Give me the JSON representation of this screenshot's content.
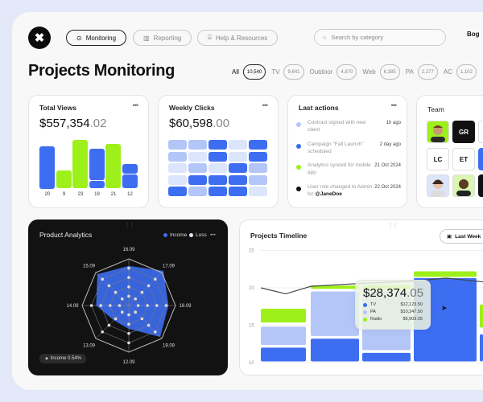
{
  "nav": {
    "monitoring": "Monitoring",
    "reporting": "Reporting",
    "help": "Help & Resources",
    "search_placeholder": "Search by category",
    "user": "Bog"
  },
  "page_title": "Projects Monitoring",
  "filters": [
    {
      "label": "All",
      "count": "10,540"
    },
    {
      "label": "TV",
      "count": "9,641"
    },
    {
      "label": "Outdoor",
      "count": "4,870"
    },
    {
      "label": "Web",
      "count": "6,385"
    },
    {
      "label": "PA",
      "count": "2,277"
    },
    {
      "label": "AC",
      "count": "1,102"
    }
  ],
  "total_views": {
    "title": "Total Views",
    "amount": "$557,354",
    "cents": ".02",
    "more": "•••",
    "bars": [
      {
        "label": "20",
        "segments": [
          {
            "v": 20,
            "c": "blue"
          }
        ]
      },
      {
        "label": "9",
        "segments": [
          {
            "v": 9,
            "c": "green"
          }
        ]
      },
      {
        "label": "23",
        "segments": [
          {
            "v": 23,
            "c": "green"
          }
        ]
      },
      {
        "label": "19",
        "segments": [
          {
            "v": 4,
            "c": "blue"
          },
          {
            "v": 15,
            "c": "blue"
          }
        ]
      },
      {
        "label": "21",
        "segments": [
          {
            "v": 21,
            "c": "green"
          }
        ]
      },
      {
        "label": "12",
        "segments": [
          {
            "v": 7,
            "c": "blue"
          },
          {
            "v": 5,
            "c": "blue"
          }
        ]
      }
    ]
  },
  "weekly_clicks": {
    "title": "Weekly Clicks",
    "amount": "$60,598",
    "cents": ".00",
    "more": "•••",
    "grid": [
      [
        2,
        2,
        3,
        1,
        3
      ],
      [
        2,
        1,
        3,
        1,
        3
      ],
      [
        1,
        2,
        1,
        3,
        2
      ],
      [
        1,
        3,
        3,
        3,
        2
      ],
      [
        3,
        2,
        3,
        3,
        1
      ]
    ]
  },
  "last_actions": {
    "title": "Last actions",
    "more": "•••",
    "items": [
      {
        "text": "Contract signed with new client",
        "mention": "",
        "date": "1h ago",
        "color": "#b3c6f7"
      },
      {
        "text": "Campaign \"Fall Launch\" scheduled",
        "mention": "",
        "date": "2 day ago",
        "color": "#3a6cf0"
      },
      {
        "text": "Analytics synced for mobile app",
        "mention": "",
        "date": "21 Oct 2024",
        "color": "#9ef01a"
      },
      {
        "text": "User role changed to Admin for ",
        "mention": "@JaneDoe",
        "date": "22 Oct 2024",
        "color": "#111111"
      }
    ]
  },
  "team": {
    "title": "Team",
    "initials": [
      "GR",
      "LC",
      "ET"
    ]
  },
  "product_analytics": {
    "title": "Product Analytics",
    "legend_income": "Income",
    "legend_loss": "Loss",
    "more": "•••",
    "badge": "▲ Income 0.54%",
    "axes": [
      "16.09",
      "17.09",
      "18.09",
      "19.09",
      "12.09",
      "13.09",
      "14.09",
      "15.09"
    ],
    "income": [
      0.85,
      1.05,
      0.85,
      0.95,
      0.5,
      0.45,
      0.7,
      0.95
    ]
  },
  "timeline": {
    "title": "Projects Timeline",
    "period": "Last Week",
    "y_ticks": [
      "25",
      "20",
      "15",
      "10"
    ],
    "tooltip": {
      "amount": "$28,374",
      "cents": ".05",
      "rows": [
        {
          "label": "TV",
          "value": "$12,123.50",
          "color": "#3a6cf0"
        },
        {
          "label": "PA",
          "value": "$10,347.50",
          "color": "#b3c6f7"
        },
        {
          "label": "Radio",
          "value": "$5,903.05",
          "color": "#9ef01a"
        }
      ]
    }
  },
  "colors": {
    "blue": "#3d6ef2",
    "light": "#b3c6f7",
    "green": "#9ef01a"
  }
}
